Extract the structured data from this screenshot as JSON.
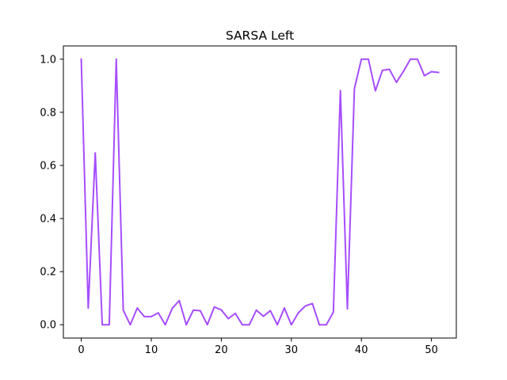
{
  "chart_data": {
    "type": "line",
    "title": "SARSA Left",
    "xlabel": "",
    "ylabel": "",
    "xlim": [
      -2.55,
      53.55
    ],
    "ylim": [
      -0.05,
      1.05
    ],
    "xticks": [
      0,
      10,
      20,
      30,
      40,
      50
    ],
    "xtick_labels": [
      "0",
      "10",
      "20",
      "30",
      "40",
      "50"
    ],
    "yticks": [
      0.0,
      0.2,
      0.4,
      0.6,
      0.8,
      1.0
    ],
    "ytick_labels": [
      "0.0",
      "0.2",
      "0.4",
      "0.6",
      "0.8",
      "1.0"
    ],
    "grid": false,
    "legend": "none",
    "series": [
      {
        "color": "#a64dff",
        "x": [
          0,
          1,
          2,
          3,
          4,
          5,
          6,
          7,
          8,
          9,
          10,
          11,
          12,
          13,
          14,
          15,
          16,
          17,
          18,
          19,
          20,
          21,
          22,
          23,
          24,
          25,
          26,
          27,
          28,
          29,
          30,
          31,
          32,
          33,
          34,
          35,
          36,
          37,
          38,
          39,
          40,
          41,
          42,
          43,
          44,
          45,
          46,
          47,
          48,
          49,
          50,
          51
        ],
        "values": [
          1.0,
          0.063,
          0.647,
          0.0,
          0.0,
          1.0,
          0.055,
          0.0,
          0.063,
          0.031,
          0.031,
          0.045,
          0.0,
          0.062,
          0.091,
          0.0,
          0.055,
          0.053,
          0.0,
          0.067,
          0.056,
          0.023,
          0.043,
          0.0,
          0.0,
          0.055,
          0.032,
          0.053,
          0.0,
          0.063,
          0.0,
          0.045,
          0.071,
          0.08,
          0.0,
          0.0,
          0.048,
          0.882,
          0.06,
          0.889,
          1.0,
          1.0,
          0.881,
          0.958,
          0.962,
          0.913,
          0.954,
          1.0,
          1.0,
          0.938,
          0.953,
          0.95
        ]
      }
    ]
  }
}
